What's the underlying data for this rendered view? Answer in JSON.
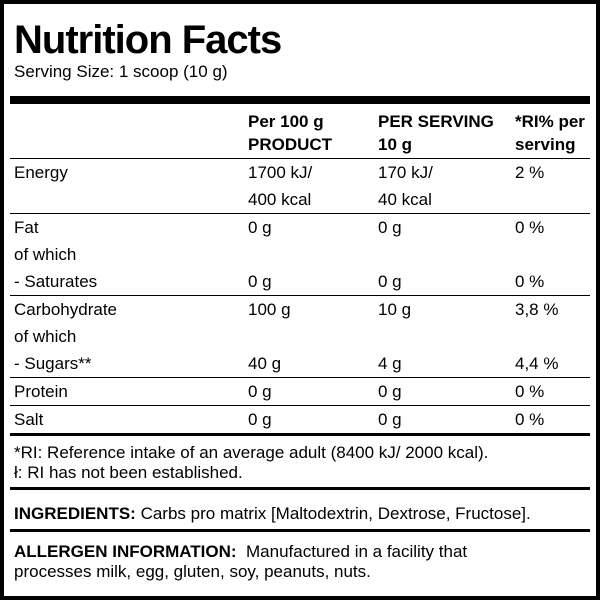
{
  "header": {
    "title": "Nutrition Facts",
    "serving_size": "Serving Size: 1 scoop (10 g)"
  },
  "table": {
    "head": [
      [
        null,
        "Per 100 g",
        "PER SERVING",
        "*RI% per"
      ],
      [
        null,
        "PRODUCT",
        "10 g",
        "serving"
      ]
    ],
    "groups": [
      [
        [
          "Energy",
          "1700 kJ/",
          "170 kJ/",
          "2 %"
        ],
        [
          null,
          "400 kcal",
          "40 kcal"
        ]
      ],
      [
        [
          "Fat",
          "0 g",
          "0 g",
          "0 %"
        ],
        [
          "of which"
        ],
        [
          "- Saturates",
          "0 g",
          "0 g",
          "0 %"
        ]
      ],
      [
        [
          "Carbohydrate",
          "100 g",
          "10 g",
          "3,8 %"
        ],
        [
          "of which"
        ],
        [
          "- Sugars**",
          "40 g",
          "4 g",
          "4,4 %"
        ]
      ],
      [
        [
          "Protein",
          "0 g",
          "0 g",
          "0 %"
        ]
      ],
      [
        [
          "Salt",
          "0 g",
          "0 g",
          "0 %"
        ]
      ]
    ]
  },
  "footnotes": [
    "*RI: Reference intake of an average adult (8400 kJ/ 2000 kcal).",
    "ł: RI has not been established."
  ],
  "ingredients": {
    "label": "INGREDIENTS:",
    "text": "Carbs pro matrix [Maltodextrin, Dextrose, Fructose]."
  },
  "allergen": {
    "label": "ALLERGEN INFORMATION:",
    "text": "Manufactured in a facility that processes milk, egg, gluten, soy, peanuts, nuts."
  }
}
